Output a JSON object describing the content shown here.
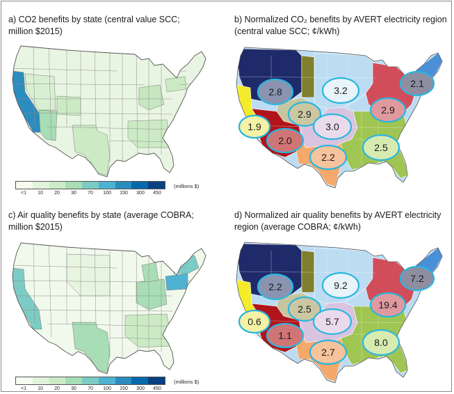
{
  "panels": {
    "a": {
      "title": "a) CO2 benefits by state (central value SCC;\nmillion $2015)"
    },
    "b": {
      "title": "b) Normalized CO₂ benefits by AVERT electricity region\n(central value SCC; ¢/kWh)"
    },
    "c": {
      "title": "c) Air quality benefits by state (average COBRA;\nmillion $2015)"
    },
    "d": {
      "title": "d) Normalized air quality benefits by AVERT electricity\nregion (average COBRA; ¢/kWh)"
    }
  },
  "legend": {
    "ticks": [
      "<1",
      "10",
      "20",
      "30",
      "70",
      "100",
      "150",
      "300",
      "450"
    ],
    "unit": "(millions $)",
    "colors": [
      "#f7fcf0",
      "#e0f3db",
      "#ccebc5",
      "#a8ddb5",
      "#7bccc4",
      "#4eb3d3",
      "#2b8cbe",
      "#0868ac",
      "#084081"
    ]
  },
  "region_colors": {
    "northwest": "#1f2a6b",
    "california": "#f4ec2a",
    "southwest": "#b0151b",
    "rocky_mountains": "#c5c6a0",
    "upper_midwest": "#7f7f2c",
    "central": "#d8c4df",
    "texas": "#f4a96a",
    "midwest": "#bcdcf2",
    "great_lakes": "#d24d5a",
    "southeast": "#9fc553",
    "northeast": "#4a90d9",
    "ellipse_border": "#29b6e0"
  },
  "regions_co2": [
    {
      "name": "northwest",
      "value": "2.8",
      "fill": "#8a94b0"
    },
    {
      "name": "midwest",
      "value": "3.2",
      "fill": "#e8f4fa"
    },
    {
      "name": "northeast",
      "value": "2.1",
      "fill": "#8e8ea0"
    },
    {
      "name": "rocky_mountains",
      "value": "2.9",
      "fill": "#cbc7a3"
    },
    {
      "name": "great_lakes",
      "value": "2.9",
      "fill": "#e09a9f"
    },
    {
      "name": "california",
      "value": "1.9",
      "fill": "#f5f2a5"
    },
    {
      "name": "central",
      "value": "3.0",
      "fill": "#eadbec"
    },
    {
      "name": "southwest",
      "value": "2.0",
      "fill": "#d07575"
    },
    {
      "name": "southeast",
      "value": "2.5",
      "fill": "#d7ebb0"
    },
    {
      "name": "texas",
      "value": "2.2",
      "fill": "#f6c39c"
    }
  ],
  "regions_aq": [
    {
      "name": "northwest",
      "value": "2.2",
      "fill": "#8a94b0"
    },
    {
      "name": "midwest",
      "value": "9.2",
      "fill": "#e8f4fa"
    },
    {
      "name": "northeast",
      "value": "7.2",
      "fill": "#8e8ea0"
    },
    {
      "name": "rocky_mountains",
      "value": "2.5",
      "fill": "#cbc7a3"
    },
    {
      "name": "great_lakes",
      "value": "19.4",
      "fill": "#e09a9f"
    },
    {
      "name": "california",
      "value": "0.6",
      "fill": "#f5f2a5"
    },
    {
      "name": "central",
      "value": "5.7",
      "fill": "#eadbec"
    },
    {
      "name": "southwest",
      "value": "1.1",
      "fill": "#d07575"
    },
    {
      "name": "southeast",
      "value": "8.0",
      "fill": "#d7ebb0"
    },
    {
      "name": "texas",
      "value": "2.7",
      "fill": "#f6c39c"
    }
  ],
  "state_colors_co2": {
    "base": "#e9f5e3",
    "california": "#2b8cbe",
    "texas": "#ccebc5",
    "arizona": "#a8ddb5",
    "west_misc": "#d9efd2",
    "plains": "#e0f3db",
    "east_misc": "#ccebc5",
    "pennsylvania": "#ccebc5",
    "ohio_valley": "#c6e7c0"
  },
  "state_colors_aq": {
    "base": "#f1f9ec",
    "california": "#7bccc4",
    "texas": "#a8ddb5",
    "pennsylvania": "#4eb3d3",
    "new_york": "#7bccc4",
    "ohio_valley": "#a8ddb5",
    "southeast": "#ccebc5",
    "plains": "#e6f4e0"
  }
}
